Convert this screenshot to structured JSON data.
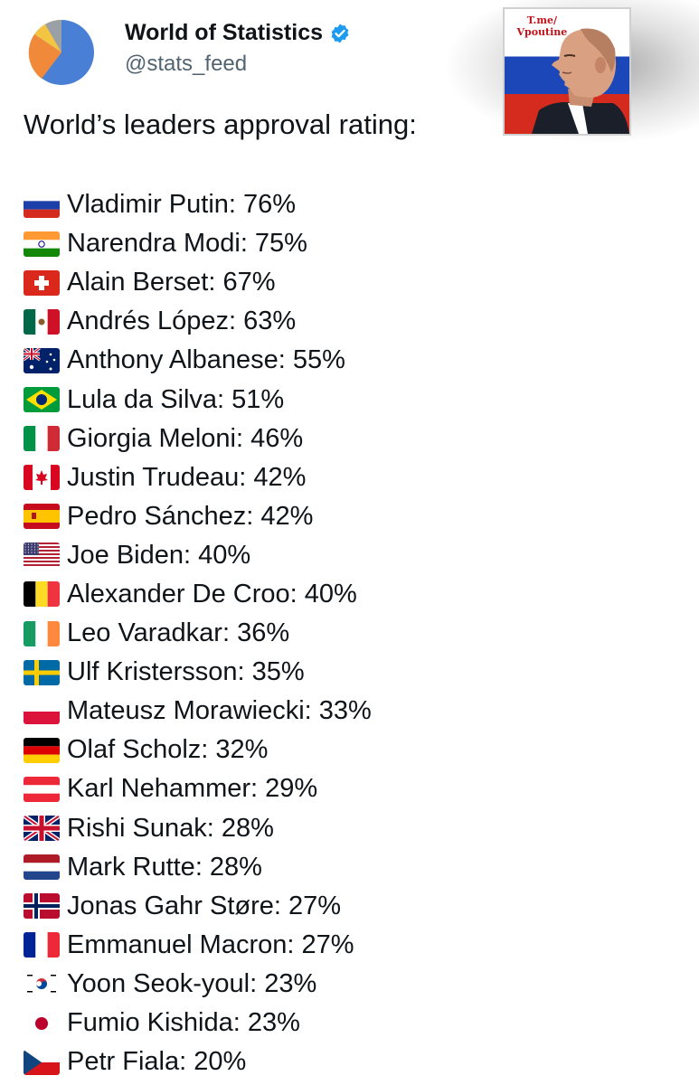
{
  "header": {
    "display_name": "World of Statistics",
    "handle": "@stats_feed",
    "verified_icon": "verified-badge-icon",
    "avatar_icon": "pie-chart-avatar-icon"
  },
  "sticker": {
    "caption_line1": "T.me/",
    "caption_line2": "Vpoutine"
  },
  "post": {
    "heading": "World’s leaders approval rating:",
    "items": [
      {
        "flag": "RU",
        "text": "Vladimir Putin: 76%"
      },
      {
        "flag": "IN",
        "text": "Narendra Modi: 75%"
      },
      {
        "flag": "CH",
        "text": "Alain Berset: 67%"
      },
      {
        "flag": "MX",
        "text": "Andrés López: 63%"
      },
      {
        "flag": "AU",
        "text": "Anthony Albanese: 55%"
      },
      {
        "flag": "BR",
        "text": "Lula da Silva: 51%"
      },
      {
        "flag": "IT",
        "text": "Giorgia Meloni: 46%"
      },
      {
        "flag": "CA",
        "text": "Justin Trudeau: 42%"
      },
      {
        "flag": "ES",
        "text": "Pedro Sánchez: 42%"
      },
      {
        "flag": "US",
        "text": "Joe Biden: 40%"
      },
      {
        "flag": "BE",
        "text": "Alexander De Croo: 40%"
      },
      {
        "flag": "IE",
        "text": "Leo Varadkar: 36%"
      },
      {
        "flag": "SE",
        "text": "Ulf Kristersson: 35%"
      },
      {
        "flag": "PL",
        "text": "Mateusz Morawiecki: 33%"
      },
      {
        "flag": "DE",
        "text": "Olaf Scholz: 32%"
      },
      {
        "flag": "AT",
        "text": "Karl Nehammer: 29%"
      },
      {
        "flag": "GB",
        "text": "Rishi Sunak: 28%"
      },
      {
        "flag": "NL",
        "text": "Mark Rutte: 28%"
      },
      {
        "flag": "NO",
        "text": "Jonas Gahr Støre: 27%"
      },
      {
        "flag": "FR",
        "text": "Emmanuel Macron: 27%"
      },
      {
        "flag": "KR",
        "text": "Yoon Seok-youl: 23%"
      },
      {
        "flag": "JP",
        "text": "Fumio Kishida: 23%"
      },
      {
        "flag": "CZ",
        "text": "Petr Fiala: 20%"
      }
    ]
  },
  "colors": {
    "text": "#0f1419",
    "secondary_text": "#536471",
    "verified_blue": "#1d9bf0",
    "avatar_blue": "#4a7fd6",
    "avatar_orange": "#f08a3a",
    "avatar_yellow": "#f4c542",
    "avatar_grey": "#9aa0a6"
  }
}
